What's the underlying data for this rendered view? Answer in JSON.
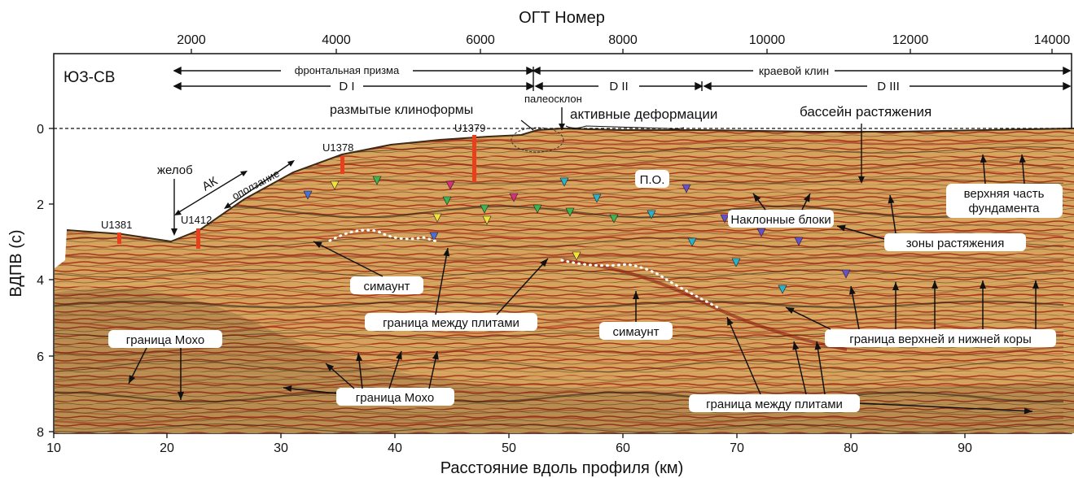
{
  "top_axis": {
    "label": "ОГТ Номер",
    "ticks": [
      "2000",
      "4000",
      "6000",
      "8000",
      "10000",
      "12000",
      "14000"
    ]
  },
  "bottom_axis": {
    "label": "Расстояние вдоль профиля (км)",
    "ticks": [
      "10",
      "20",
      "30",
      "40",
      "50",
      "60",
      "70",
      "80",
      "90"
    ]
  },
  "left_axis": {
    "label": "ВДПВ (с)",
    "ticks": [
      "0",
      "2",
      "4",
      "6",
      "8"
    ]
  },
  "section_label": "ЮЗ-СВ",
  "spans": {
    "frontal_prism": "фронтальная призма",
    "marginal_wedge": "краевой клин",
    "d1": "D I",
    "d2": "D II",
    "d3": "D III"
  },
  "annotations": {
    "paleoslope": "палеосклон",
    "eroded_clinoforms": "размытые клиноформы",
    "active_deformation": "активные деформации",
    "extension_basin": "бассейн растяжения",
    "trench": "желоб",
    "ak": "АК",
    "landslide": "оползание",
    "po": "П.О.",
    "tilted_blocks": "Наклонные блоки",
    "basement_top_1": "верхняя часть",
    "basement_top_2": "фундамента",
    "extension_zones": "зоны растяжения",
    "seamount_1": "симаунт",
    "plate_boundary_1": "граница между плитами",
    "seamount_2": "симаунт",
    "moho_1": "граница Мохо",
    "moho_2": "граница Мохо",
    "crust_boundary": "граница верхней и нижней коры",
    "plate_boundary_2": "граница между плитами"
  },
  "wells": [
    "U1381",
    "U1412",
    "U1378",
    "U1379"
  ],
  "colors": {
    "seismic_base": "#d4a25a",
    "seismic_red": "#b3301c",
    "seismic_dark": "#2b1e12",
    "well_marker": "#e8401c"
  }
}
